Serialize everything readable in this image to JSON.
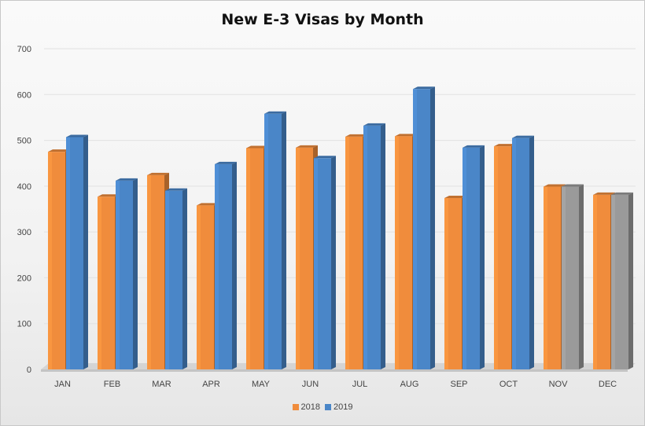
{
  "chart_data": {
    "type": "bar",
    "title": "New E-3 Visas by Month",
    "xlabel": "",
    "ylabel": "",
    "ylim": [
      0,
      700
    ],
    "yticks": [
      0,
      100,
      200,
      300,
      400,
      500,
      600,
      700
    ],
    "grid": true,
    "legend_position": "bottom",
    "categories": [
      "JAN",
      "FEB",
      "MAR",
      "APR",
      "MAY",
      "JUN",
      "JUL",
      "AUG",
      "SEP",
      "OCT",
      "NOV",
      "DEC"
    ],
    "series": [
      {
        "name": "2018",
        "color": "#f08c3c",
        "values": [
          475,
          377,
          424,
          358,
          483,
          484,
          508,
          509,
          374,
          487,
          399,
          381
        ]
      },
      {
        "name": "2019",
        "color": "#4a86c8",
        "values": [
          507,
          412,
          390,
          448,
          558,
          461,
          532,
          612,
          484,
          505,
          399,
          381
        ]
      }
    ],
    "gray_bars": [
      {
        "category": "NOV",
        "series": "2019",
        "color": "#9a9a9a"
      },
      {
        "category": "DEC",
        "series": "2019",
        "color": "#9a9a9a"
      }
    ]
  }
}
